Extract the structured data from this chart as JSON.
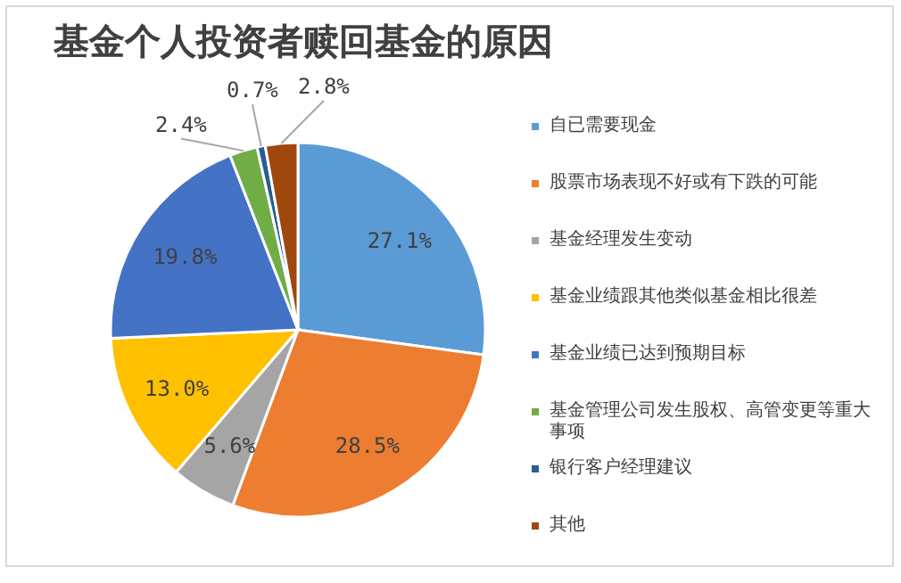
{
  "chart_data": {
    "type": "pie",
    "title": "基金个人投资者赎回基金的原因",
    "categories": [
      "自已需要现金",
      "股票市场表现不好或有下跌的可能",
      "基金经理发生变动",
      "基金业绩跟其他类似基金相比很差",
      "基金业绩已达到预期目标",
      "基金管理公司发生股权、高管变更等重大事项",
      "银行客户经理建议",
      "其他"
    ],
    "values": [
      27.1,
      28.5,
      5.6,
      13.0,
      19.8,
      2.4,
      0.7,
      2.8
    ],
    "value_labels": [
      "27.1%",
      "28.5%",
      "5.6%",
      "13.0%",
      "19.8%",
      "2.4%",
      "0.7%",
      "2.8%"
    ],
    "colors": [
      "#5b9bd5",
      "#ed7d31",
      "#a5a5a5",
      "#ffc000",
      "#4472c4",
      "#70ad47",
      "#255e91",
      "#9e480e"
    ],
    "legend": "right"
  }
}
